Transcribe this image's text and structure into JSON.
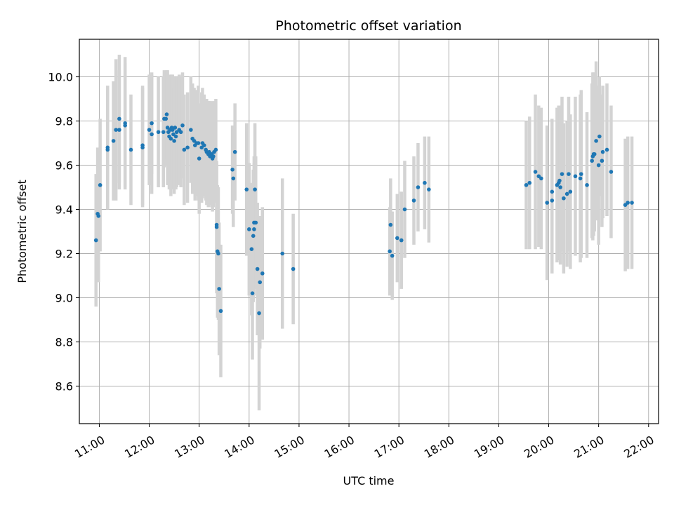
{
  "chart_data": {
    "type": "scatter",
    "title": "Photometric offset variation",
    "xlabel": "UTC time",
    "ylabel": "Photometric offset",
    "xlim": [
      "10:36",
      "22:12"
    ],
    "ylim": [
      8.43,
      10.17
    ],
    "x_ticks": [
      "11:00",
      "12:00",
      "13:00",
      "14:00",
      "15:00",
      "16:00",
      "17:00",
      "18:00",
      "19:00",
      "20:00",
      "21:00",
      "22:00"
    ],
    "y_ticks": [
      "8.6",
      "8.8",
      "9.0",
      "9.2",
      "9.4",
      "9.6",
      "9.8",
      "10.0"
    ],
    "grid": true,
    "marker_color": "#1f77b4",
    "errorbar_color": "#d3d3d3",
    "points": [
      {
        "x": "10:56",
        "y": 9.26,
        "err": 0.3
      },
      {
        "x": "10:58",
        "y": 9.38,
        "err": 0.3
      },
      {
        "x": "10:59",
        "y": 9.37,
        "err": 0.3
      },
      {
        "x": "11:01",
        "y": 9.51,
        "err": 0.3
      },
      {
        "x": "11:10",
        "y": 9.68,
        "err": 0.28
      },
      {
        "x": "11:10",
        "y": 9.67,
        "err": 0.27
      },
      {
        "x": "11:17",
        "y": 9.71,
        "err": 0.27
      },
      {
        "x": "11:20",
        "y": 9.76,
        "err": 0.32
      },
      {
        "x": "11:24",
        "y": 9.81,
        "err": 0.29
      },
      {
        "x": "11:24",
        "y": 9.76,
        "err": 0.27
      },
      {
        "x": "11:31",
        "y": 9.79,
        "err": 0.3
      },
      {
        "x": "11:31",
        "y": 9.78,
        "err": 0.28
      },
      {
        "x": "11:38",
        "y": 9.67,
        "err": 0.25
      },
      {
        "x": "11:52",
        "y": 9.69,
        "err": 0.27
      },
      {
        "x": "11:52",
        "y": 9.68,
        "err": 0.27
      },
      {
        "x": "12:00",
        "y": 9.76,
        "err": 0.25
      },
      {
        "x": "12:03",
        "y": 9.79,
        "err": 0.23
      },
      {
        "x": "12:03",
        "y": 9.74,
        "err": 0.27
      },
      {
        "x": "12:11",
        "y": 9.75,
        "err": 0.25
      },
      {
        "x": "12:17",
        "y": 9.75,
        "err": 0.25
      },
      {
        "x": "12:18",
        "y": 9.81,
        "err": 0.22
      },
      {
        "x": "12:20",
        "y": 9.81,
        "err": 0.21
      },
      {
        "x": "12:21",
        "y": 9.83,
        "err": 0.2
      },
      {
        "x": "12:22",
        "y": 9.77,
        "err": 0.26
      },
      {
        "x": "12:23",
        "y": 9.75,
        "err": 0.24
      },
      {
        "x": "12:24",
        "y": 9.73,
        "err": 0.24
      },
      {
        "x": "12:25",
        "y": 9.76,
        "err": 0.25
      },
      {
        "x": "12:26",
        "y": 9.72,
        "err": 0.26
      },
      {
        "x": "12:27",
        "y": 9.77,
        "err": 0.24
      },
      {
        "x": "12:28",
        "y": 9.76,
        "err": 0.25
      },
      {
        "x": "12:29",
        "y": 9.74,
        "err": 0.25
      },
      {
        "x": "12:30",
        "y": 9.71,
        "err": 0.24
      },
      {
        "x": "12:31",
        "y": 9.77,
        "err": 0.23
      },
      {
        "x": "12:32",
        "y": 9.73,
        "err": 0.24
      },
      {
        "x": "12:33",
        "y": 9.75,
        "err": 0.25
      },
      {
        "x": "12:36",
        "y": 9.76,
        "err": 0.25
      },
      {
        "x": "12:38",
        "y": 9.75,
        "err": 0.25
      },
      {
        "x": "12:40",
        "y": 9.78,
        "err": 0.24
      },
      {
        "x": "12:42",
        "y": 9.67,
        "err": 0.25
      },
      {
        "x": "12:46",
        "y": 9.68,
        "err": 0.25
      },
      {
        "x": "12:50",
        "y": 9.76,
        "err": 0.24
      },
      {
        "x": "12:52",
        "y": 9.72,
        "err": 0.25
      },
      {
        "x": "12:54",
        "y": 9.71,
        "err": 0.24
      },
      {
        "x": "12:55",
        "y": 9.69,
        "err": 0.25
      },
      {
        "x": "12:57",
        "y": 9.7,
        "err": 0.24
      },
      {
        "x": "12:59",
        "y": 9.7,
        "err": 0.26
      },
      {
        "x": "13:00",
        "y": 9.63,
        "err": 0.25
      },
      {
        "x": "13:03",
        "y": 9.68,
        "err": 0.25
      },
      {
        "x": "13:04",
        "y": 9.7,
        "err": 0.25
      },
      {
        "x": "13:06",
        "y": 9.69,
        "err": 0.23
      },
      {
        "x": "13:08",
        "y": 9.67,
        "err": 0.23
      },
      {
        "x": "13:09",
        "y": 9.66,
        "err": 0.24
      },
      {
        "x": "13:11",
        "y": 9.65,
        "err": 0.24
      },
      {
        "x": "13:12",
        "y": 9.66,
        "err": 0.23
      },
      {
        "x": "13:13",
        "y": 9.64,
        "err": 0.22
      },
      {
        "x": "13:15",
        "y": 9.65,
        "err": 0.24
      },
      {
        "x": "13:16",
        "y": 9.63,
        "err": 0.24
      },
      {
        "x": "13:17",
        "y": 9.64,
        "err": 0.23
      },
      {
        "x": "13:18",
        "y": 9.66,
        "err": 0.23
      },
      {
        "x": "13:20",
        "y": 9.67,
        "err": 0.23
      },
      {
        "x": "13:21",
        "y": 9.33,
        "err": 0.28
      },
      {
        "x": "13:21",
        "y": 9.32,
        "err": 0.3
      },
      {
        "x": "13:22",
        "y": 9.21,
        "err": 0.3
      },
      {
        "x": "13:23",
        "y": 9.2,
        "err": 0.3
      },
      {
        "x": "13:24",
        "y": 9.04,
        "err": 0.3
      },
      {
        "x": "13:26",
        "y": 8.94,
        "err": 0.3
      },
      {
        "x": "13:40",
        "y": 9.58,
        "err": 0.2
      },
      {
        "x": "13:41",
        "y": 9.54,
        "err": 0.22
      },
      {
        "x": "13:43",
        "y": 9.66,
        "err": 0.22
      },
      {
        "x": "13:57",
        "y": 9.49,
        "err": 0.3
      },
      {
        "x": "14:00",
        "y": 9.31,
        "err": 0.3
      },
      {
        "x": "14:03",
        "y": 9.22,
        "err": 0.3
      },
      {
        "x": "14:04",
        "y": 9.02,
        "err": 0.3
      },
      {
        "x": "14:05",
        "y": 9.28,
        "err": 0.3
      },
      {
        "x": "14:06",
        "y": 9.34,
        "err": 0.3
      },
      {
        "x": "14:06",
        "y": 9.31,
        "err": 0.3
      },
      {
        "x": "14:07",
        "y": 9.49,
        "err": 0.3
      },
      {
        "x": "14:08",
        "y": 9.34,
        "err": 0.3
      },
      {
        "x": "14:10",
        "y": 9.13,
        "err": 0.3
      },
      {
        "x": "14:12",
        "y": 8.93,
        "err": 0.44
      },
      {
        "x": "14:13",
        "y": 9.07,
        "err": 0.3
      },
      {
        "x": "14:16",
        "y": 9.11,
        "err": 0.3
      },
      {
        "x": "14:40",
        "y": 9.2,
        "err": 0.34
      },
      {
        "x": "14:53",
        "y": 9.13,
        "err": 0.25
      },
      {
        "x": "16:49",
        "y": 9.21,
        "err": 0.2
      },
      {
        "x": "16:50",
        "y": 9.33,
        "err": 0.21
      },
      {
        "x": "16:52",
        "y": 9.19,
        "err": 0.2
      },
      {
        "x": "16:58",
        "y": 9.27,
        "err": 0.2
      },
      {
        "x": "17:03",
        "y": 9.26,
        "err": 0.22
      },
      {
        "x": "17:07",
        "y": 9.4,
        "err": 0.22
      },
      {
        "x": "17:18",
        "y": 9.44,
        "err": 0.2
      },
      {
        "x": "17:23",
        "y": 9.5,
        "err": 0.2
      },
      {
        "x": "17:31",
        "y": 9.52,
        "err": 0.21
      },
      {
        "x": "17:36",
        "y": 9.49,
        "err": 0.24
      },
      {
        "x": "19:33",
        "y": 9.51,
        "err": 0.29
      },
      {
        "x": "19:37",
        "y": 9.52,
        "err": 0.3
      },
      {
        "x": "19:44",
        "y": 9.57,
        "err": 0.35
      },
      {
        "x": "19:48",
        "y": 9.55,
        "err": 0.32
      },
      {
        "x": "19:51",
        "y": 9.54,
        "err": 0.32
      },
      {
        "x": "19:58",
        "y": 9.43,
        "err": 0.35
      },
      {
        "x": "20:04",
        "y": 9.48,
        "err": 0.33
      },
      {
        "x": "20:04",
        "y": 9.44,
        "err": 0.33
      },
      {
        "x": "20:10",
        "y": 9.51,
        "err": 0.35
      },
      {
        "x": "20:12",
        "y": 9.52,
        "err": 0.35
      },
      {
        "x": "20:13",
        "y": 9.53,
        "err": 0.34
      },
      {
        "x": "20:14",
        "y": 9.5,
        "err": 0.35
      },
      {
        "x": "20:16",
        "y": 9.56,
        "err": 0.35
      },
      {
        "x": "20:18",
        "y": 9.45,
        "err": 0.34
      },
      {
        "x": "20:22",
        "y": 9.47,
        "err": 0.33
      },
      {
        "x": "20:24",
        "y": 9.56,
        "err": 0.35
      },
      {
        "x": "20:26",
        "y": 9.48,
        "err": 0.35
      },
      {
        "x": "20:32",
        "y": 9.55,
        "err": 0.36
      },
      {
        "x": "20:38",
        "y": 9.54,
        "err": 0.38
      },
      {
        "x": "20:39",
        "y": 9.56,
        "err": 0.38
      },
      {
        "x": "20:46",
        "y": 9.51,
        "err": 0.33
      },
      {
        "x": "20:52",
        "y": 9.62,
        "err": 0.35
      },
      {
        "x": "20:53",
        "y": 9.64,
        "err": 0.38
      },
      {
        "x": "20:54",
        "y": 9.65,
        "err": 0.37
      },
      {
        "x": "20:55",
        "y": 9.65,
        "err": 0.35
      },
      {
        "x": "20:57",
        "y": 9.71,
        "err": 0.36
      },
      {
        "x": "21:00",
        "y": 9.6,
        "err": 0.36
      },
      {
        "x": "21:01",
        "y": 9.73,
        "err": 0.27
      },
      {
        "x": "21:04",
        "y": 9.62,
        "err": 0.3
      },
      {
        "x": "21:05",
        "y": 9.66,
        "err": 0.3
      },
      {
        "x": "21:10",
        "y": 9.67,
        "err": 0.3
      },
      {
        "x": "21:15",
        "y": 9.57,
        "err": 0.3
      },
      {
        "x": "21:32",
        "y": 9.42,
        "err": 0.3
      },
      {
        "x": "21:35",
        "y": 9.43,
        "err": 0.3
      },
      {
        "x": "21:40",
        "y": 9.43,
        "err": 0.3
      }
    ]
  }
}
